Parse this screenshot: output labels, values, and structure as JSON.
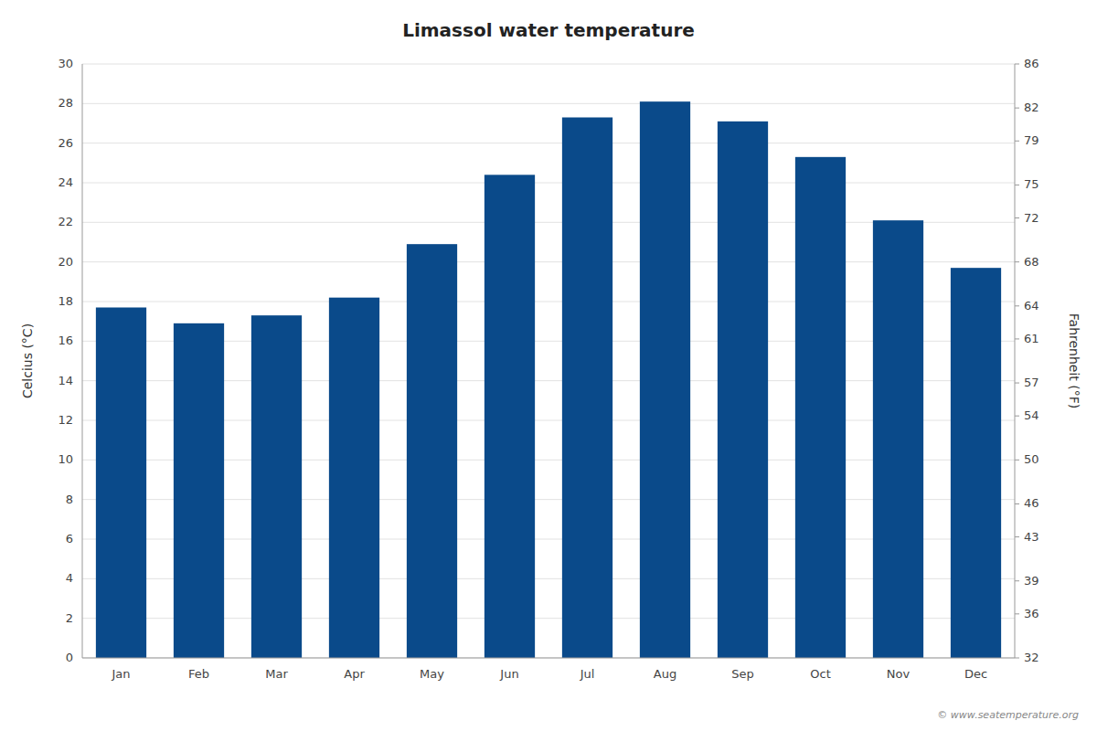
{
  "chart_data": {
    "type": "bar",
    "title": "Limassol water temperature",
    "categories": [
      "Jan",
      "Feb",
      "Mar",
      "Apr",
      "May",
      "Jun",
      "Jul",
      "Aug",
      "Sep",
      "Oct",
      "Nov",
      "Dec"
    ],
    "values": [
      17.7,
      16.9,
      17.3,
      18.2,
      20.9,
      24.4,
      27.3,
      28.1,
      27.1,
      25.3,
      22.1,
      19.7
    ],
    "color": "#0a4a8a",
    "ylabel": "Celcius (°C)",
    "y2label": "Fahrenheit (°F)",
    "ylim": [
      0,
      30
    ],
    "yticks": [
      0,
      2,
      4,
      6,
      8,
      10,
      12,
      14,
      16,
      18,
      20,
      22,
      24,
      26,
      28,
      30
    ],
    "y2lim": [
      32,
      86
    ],
    "y2ticks": [
      32,
      36,
      39,
      43,
      46,
      50,
      54,
      57,
      61,
      64,
      68,
      72,
      75,
      79,
      82,
      86
    ],
    "grid": true,
    "annotations": [
      "© www.seatemperature.org"
    ]
  }
}
